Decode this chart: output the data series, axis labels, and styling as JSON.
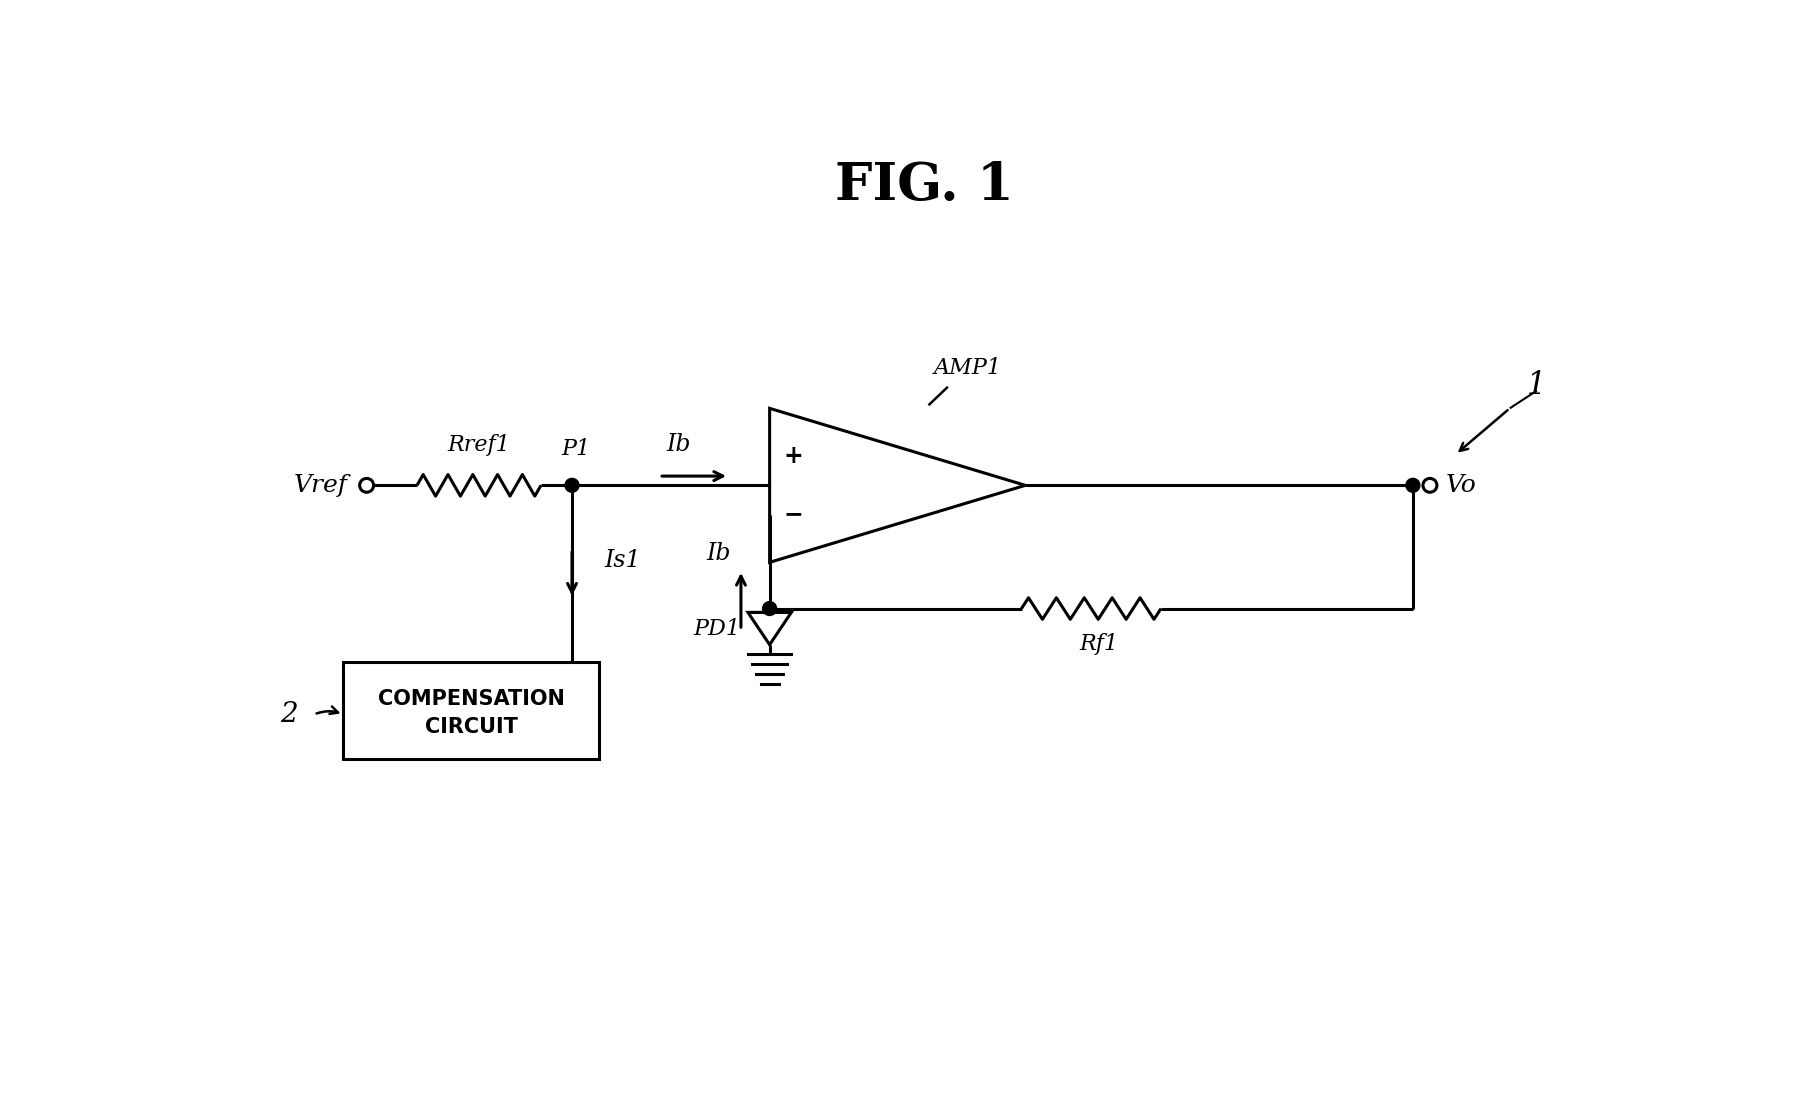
{
  "title": "FIG. 1",
  "bg_color": "#ffffff",
  "line_color": "#000000",
  "title_fontsize": 38,
  "label_fontsize": 18,
  "fig_label": "1",
  "circuit_label_2": "2",
  "vref_label": "Vref",
  "rref1_label": "Rref1",
  "p1_label": "P1",
  "ib_label": "Ib",
  "amp1_label": "AMP1",
  "is1_label": "Is1",
  "ib2_label": "Ib",
  "pd1_label": "PD1",
  "rf1_label": "Rf1",
  "vo_label": "Vo",
  "comp_label1": "COMPENSATION",
  "comp_label2": "CIRCUIT"
}
